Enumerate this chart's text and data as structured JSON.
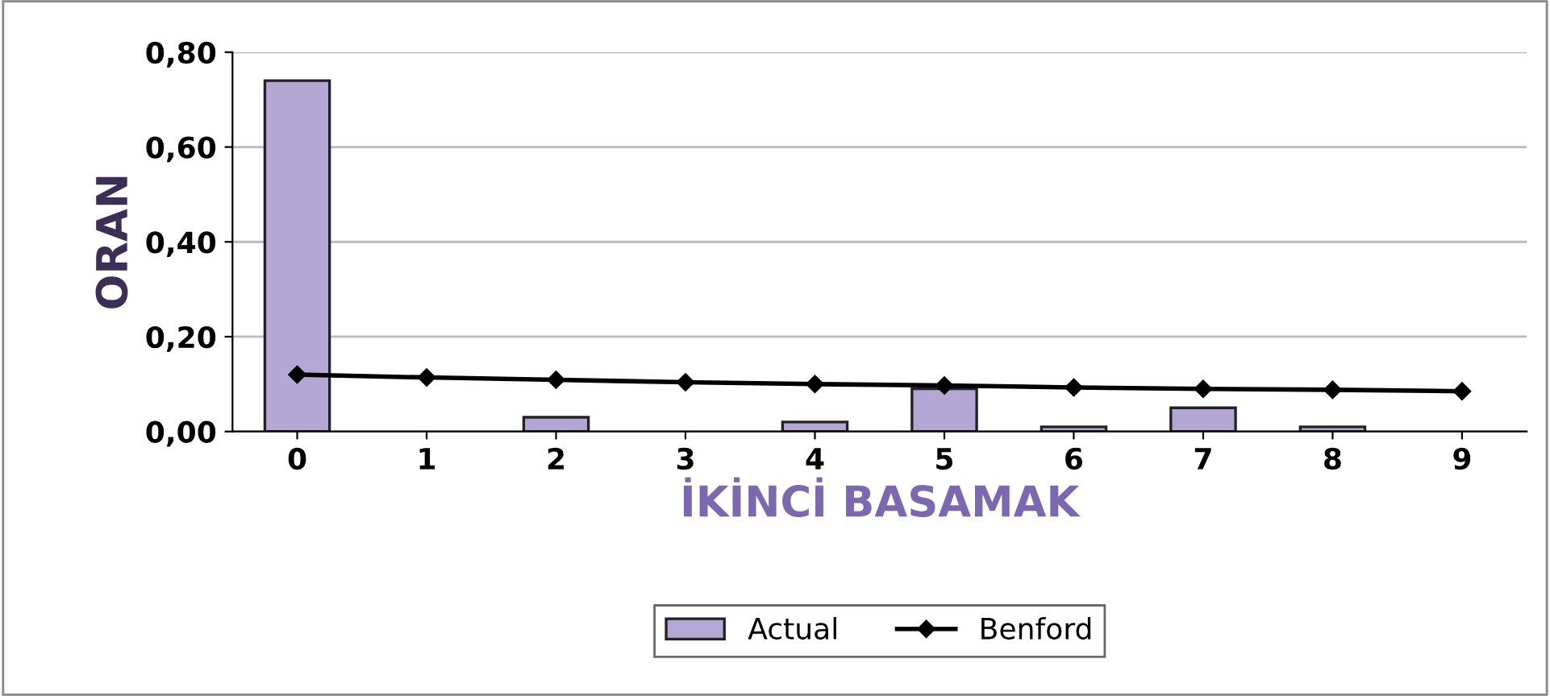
{
  "chart_data": {
    "type": "bar",
    "xlabel": "İKİNCİ BASAMAK",
    "ylabel": "ORAN",
    "categories": [
      "0",
      "1",
      "2",
      "3",
      "4",
      "5",
      "6",
      "7",
      "8",
      "9"
    ],
    "series": [
      {
        "name": "Actual",
        "color": "#b4a7d6",
        "values": [
          0.74,
          null,
          0.03,
          null,
          0.02,
          0.09,
          0.01,
          0.05,
          0.01,
          null
        ]
      },
      {
        "name": "Benford",
        "type": "line",
        "color": "#000000",
        "marker": "diamond",
        "values": [
          0.12,
          0.114,
          0.109,
          0.104,
          0.1,
          0.097,
          0.093,
          0.09,
          0.088,
          0.085
        ]
      }
    ],
    "ylim": [
      0,
      0.8
    ],
    "yticks": [
      {
        "value": 0,
        "label": "0,00"
      },
      {
        "value": 0.2,
        "label": "0,20"
      },
      {
        "value": 0.4,
        "label": "0,40"
      },
      {
        "value": 0.6,
        "label": "0,60"
      },
      {
        "value": 0.8,
        "label": "0,80"
      }
    ],
    "grid": "y",
    "legend": "bottom"
  }
}
